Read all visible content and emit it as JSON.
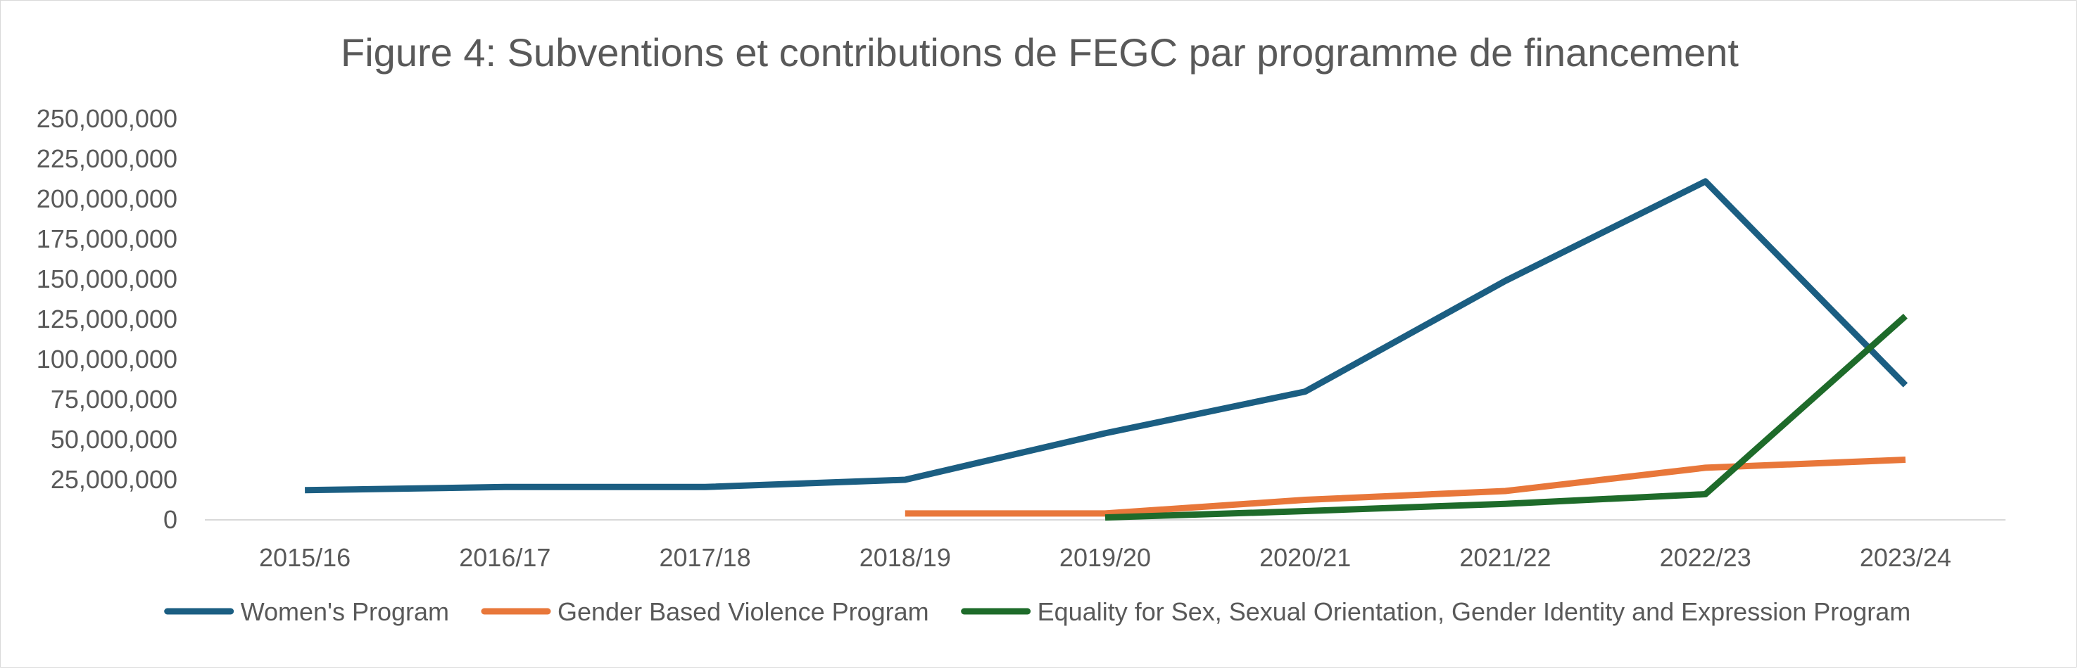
{
  "chart_data": {
    "type": "line",
    "title": "Figure 4: Subventions et contributions de FEGC par programme de financement",
    "xlabel": "",
    "ylabel": "",
    "categories": [
      "2015/16",
      "2016/17",
      "2017/18",
      "2018/19",
      "2019/20",
      "2020/21",
      "2021/22",
      "2022/23",
      "2023/24"
    ],
    "ylim": [
      0,
      250000000
    ],
    "ytick_values": [
      0,
      25000000,
      50000000,
      75000000,
      100000000,
      125000000,
      150000000,
      175000000,
      200000000,
      225000000,
      250000000
    ],
    "ytick_labels": [
      "0",
      "25,000,000",
      "50,000,000",
      "75,000,000",
      "100,000,000",
      "125,000,000",
      "150,000,000",
      "175,000,000",
      "200,000,000",
      "225,000,000",
      "250,000,000"
    ],
    "grid": false,
    "legend_position": "bottom",
    "series": [
      {
        "name": "Women's Program",
        "color": "#1b5e82",
        "values": [
          18500000,
          20500000,
          20500000,
          25000000,
          54000000,
          80000000,
          149000000,
          211000000,
          84000000
        ]
      },
      {
        "name": "Gender Based Violence Program",
        "color": "#e8773a",
        "values": [
          null,
          null,
          null,
          4000000,
          4000000,
          12500000,
          18000000,
          32500000,
          37500000
        ]
      },
      {
        "name": "Equality for Sex, Sexual Orientation, Gender Identity and Expression Program",
        "color": "#1e6b2a",
        "values": [
          null,
          null,
          null,
          null,
          1500000,
          5500000,
          10000000,
          16000000,
          127000000
        ]
      }
    ]
  }
}
